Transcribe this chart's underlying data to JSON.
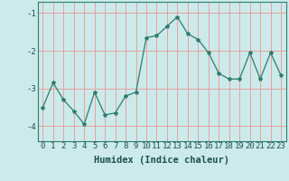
{
  "x": [
    0,
    1,
    2,
    3,
    4,
    5,
    6,
    7,
    8,
    9,
    10,
    11,
    12,
    13,
    14,
    15,
    16,
    17,
    18,
    19,
    20,
    21,
    22,
    23
  ],
  "y": [
    -3.5,
    -2.85,
    -3.3,
    -3.6,
    -3.95,
    -3.1,
    -3.7,
    -3.65,
    -3.2,
    -3.1,
    -1.65,
    -1.6,
    -1.35,
    -1.1,
    -1.55,
    -1.7,
    -2.05,
    -2.6,
    -2.75,
    -2.75,
    -2.05,
    -2.75,
    -2.05,
    -2.65
  ],
  "line_color": "#2d7d6e",
  "marker": "*",
  "marker_size": 3,
  "bg_color": "#cceaea",
  "grid_color": "#e8a0a0",
  "xlabel": "Humidex (Indice chaleur)",
  "ylim": [
    -4.4,
    -0.7
  ],
  "xlim": [
    -0.5,
    23.5
  ],
  "yticks": [
    -4,
    -3,
    -2,
    -1
  ],
  "xtick_labels": [
    "0",
    "1",
    "2",
    "3",
    "4",
    "5",
    "6",
    "7",
    "8",
    "9",
    "10",
    "11",
    "12",
    "13",
    "14",
    "15",
    "16",
    "17",
    "18",
    "19",
    "20",
    "21",
    "22",
    "23"
  ],
  "xlabel_fontsize": 7.5,
  "tick_fontsize": 6.5,
  "label_color": "#1a5050"
}
